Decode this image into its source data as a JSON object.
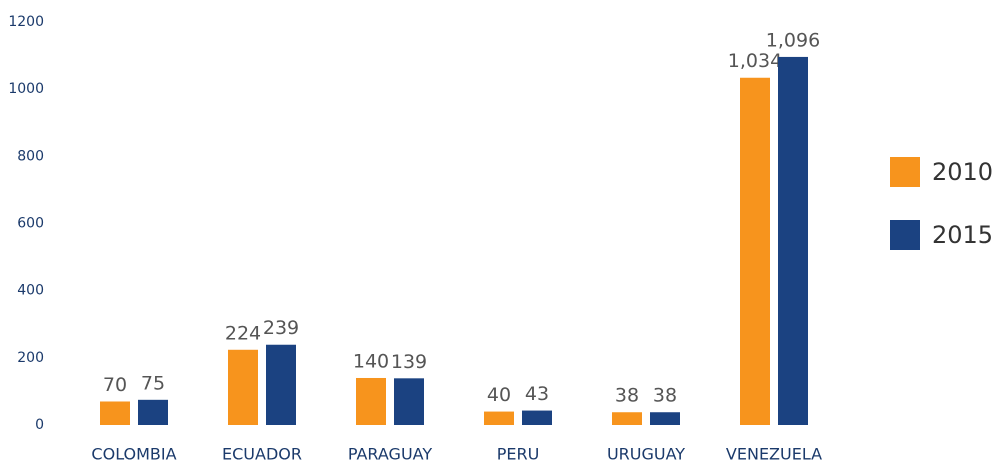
{
  "chart_data": {
    "type": "bar",
    "categories": [
      "COLOMBIA",
      "ECUADOR",
      "PARAGUAY",
      "PERU",
      "URUGUAY",
      "VENEZUELA"
    ],
    "series": [
      {
        "name": "2010",
        "color": "#f7941d",
        "values": [
          70,
          224,
          140,
          40,
          38,
          1034
        ],
        "value_labels": [
          "70",
          "224",
          "140",
          "40",
          "38",
          "1,034"
        ]
      },
      {
        "name": "2015",
        "color": "#1b4281",
        "values": [
          75,
          239,
          139,
          43,
          38,
          1096
        ],
        "value_labels": [
          "75",
          "239",
          "139",
          "43",
          "38",
          "1,096"
        ]
      }
    ],
    "ylim": [
      0,
      1200
    ],
    "yticks": [
      0,
      200,
      400,
      600,
      800,
      1000,
      1200
    ],
    "grid": false,
    "legend": "right"
  }
}
